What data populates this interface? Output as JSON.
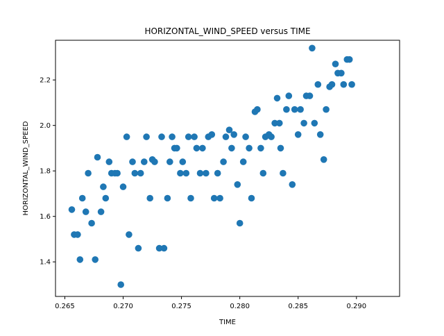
{
  "chart_data": {
    "type": "scatter",
    "title": "HORIZONTAL_WIND_SPEED versus TIME",
    "xlabel": "TIME",
    "ylabel": "HORIZONTAL_WIND_SPEED",
    "xlim": [
      0.2642,
      0.2937
    ],
    "ylim": [
      1.248,
      2.3745
    ],
    "xticks": [
      0.265,
      0.27,
      0.275,
      0.28,
      0.285,
      0.29
    ],
    "xtick_labels": [
      "0.265",
      "0.270",
      "0.275",
      "0.280",
      "0.285",
      "0.290"
    ],
    "yticks": [
      1.4,
      1.6,
      1.8,
      2.0,
      2.2
    ],
    "ytick_labels": [
      "1.4",
      "1.6",
      "1.8",
      "2.0",
      "2.2"
    ],
    "grid": false,
    "legend": false,
    "marker_color": "#1f77b4",
    "series": [
      {
        "points": [
          [
            0.2656,
            1.63
          ],
          [
            0.2658,
            1.52
          ],
          [
            0.2661,
            1.52
          ],
          [
            0.2663,
            1.41
          ],
          [
            0.2665,
            1.68
          ],
          [
            0.2668,
            1.62
          ],
          [
            0.267,
            1.79
          ],
          [
            0.2673,
            1.57
          ],
          [
            0.2676,
            1.41
          ],
          [
            0.2678,
            1.86
          ],
          [
            0.2681,
            1.62
          ],
          [
            0.2683,
            1.73
          ],
          [
            0.2685,
            1.68
          ],
          [
            0.2688,
            1.84
          ],
          [
            0.269,
            1.79
          ],
          [
            0.2693,
            1.79
          ],
          [
            0.2695,
            1.79
          ],
          [
            0.2698,
            1.3
          ],
          [
            0.27,
            1.73
          ],
          [
            0.2703,
            1.95
          ],
          [
            0.2705,
            1.52
          ],
          [
            0.2708,
            1.84
          ],
          [
            0.271,
            1.79
          ],
          [
            0.2713,
            1.46
          ],
          [
            0.2715,
            1.79
          ],
          [
            0.2718,
            1.84
          ],
          [
            0.272,
            1.95
          ],
          [
            0.2723,
            1.68
          ],
          [
            0.2725,
            1.85
          ],
          [
            0.2727,
            1.84
          ],
          [
            0.2731,
            1.46
          ],
          [
            0.2733,
            1.95
          ],
          [
            0.2735,
            1.46
          ],
          [
            0.2738,
            1.68
          ],
          [
            0.274,
            1.84
          ],
          [
            0.2742,
            1.95
          ],
          [
            0.2744,
            1.9
          ],
          [
            0.2746,
            1.9
          ],
          [
            0.2749,
            1.79
          ],
          [
            0.2751,
            1.84
          ],
          [
            0.2754,
            1.79
          ],
          [
            0.2756,
            1.95
          ],
          [
            0.2758,
            1.68
          ],
          [
            0.2761,
            1.95
          ],
          [
            0.2763,
            1.9
          ],
          [
            0.2766,
            1.79
          ],
          [
            0.2768,
            1.9
          ],
          [
            0.2771,
            1.79
          ],
          [
            0.2773,
            1.95
          ],
          [
            0.2776,
            1.96
          ],
          [
            0.2778,
            1.68
          ],
          [
            0.2781,
            1.79
          ],
          [
            0.2783,
            1.68
          ],
          [
            0.2786,
            1.84
          ],
          [
            0.2788,
            1.95
          ],
          [
            0.2791,
            1.98
          ],
          [
            0.2793,
            1.9
          ],
          [
            0.2795,
            1.96
          ],
          [
            0.2798,
            1.74
          ],
          [
            0.28,
            1.57
          ],
          [
            0.2803,
            1.84
          ],
          [
            0.2805,
            1.95
          ],
          [
            0.2808,
            1.9
          ],
          [
            0.281,
            1.68
          ],
          [
            0.2813,
            2.06
          ],
          [
            0.2815,
            2.07
          ],
          [
            0.2818,
            1.9
          ],
          [
            0.282,
            1.79
          ],
          [
            0.2822,
            1.95
          ],
          [
            0.2825,
            1.96
          ],
          [
            0.2827,
            1.95
          ],
          [
            0.283,
            2.01
          ],
          [
            0.2832,
            2.12
          ],
          [
            0.2834,
            2.01
          ],
          [
            0.2835,
            1.9
          ],
          [
            0.2837,
            1.79
          ],
          [
            0.284,
            2.07
          ],
          [
            0.2842,
            2.13
          ],
          [
            0.2845,
            1.74
          ],
          [
            0.2847,
            2.07
          ],
          [
            0.285,
            1.96
          ],
          [
            0.2852,
            2.07
          ],
          [
            0.2855,
            2.01
          ],
          [
            0.2857,
            2.13
          ],
          [
            0.286,
            2.13
          ],
          [
            0.2862,
            2.34
          ],
          [
            0.2864,
            2.01
          ],
          [
            0.2867,
            2.18
          ],
          [
            0.2869,
            1.96
          ],
          [
            0.2872,
            1.85
          ],
          [
            0.2874,
            2.07
          ],
          [
            0.2877,
            2.17
          ],
          [
            0.2879,
            2.18
          ],
          [
            0.2882,
            2.27
          ],
          [
            0.2884,
            2.23
          ],
          [
            0.2887,
            2.23
          ],
          [
            0.2889,
            2.18
          ],
          [
            0.2892,
            2.29
          ],
          [
            0.2894,
            2.29
          ],
          [
            0.2896,
            2.18
          ]
        ]
      }
    ]
  }
}
